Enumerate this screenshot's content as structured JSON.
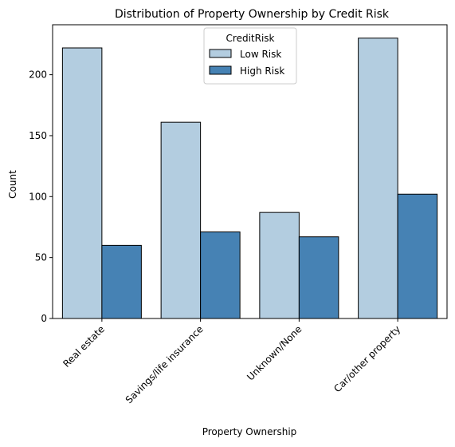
{
  "chart_data": {
    "type": "bar",
    "title": "Distribution of Property Ownership by Credit Risk",
    "xlabel": "Property Ownership",
    "ylabel": "Count",
    "categories": [
      "Real estate",
      "Savings/life insurance",
      "Unknown/None",
      "Car/other property"
    ],
    "series": [
      {
        "name": "Low Risk",
        "values": [
          222,
          161,
          87,
          230
        ],
        "color": "#b3cde0"
      },
      {
        "name": "High Risk",
        "values": [
          60,
          71,
          67,
          102
        ],
        "color": "#4682b4"
      }
    ],
    "ylim": [
      0,
      241
    ],
    "yticks": [
      0,
      50,
      100,
      150,
      200
    ],
    "legend": {
      "title": "CreditRisk",
      "placement": "top-center"
    },
    "grid": false
  }
}
